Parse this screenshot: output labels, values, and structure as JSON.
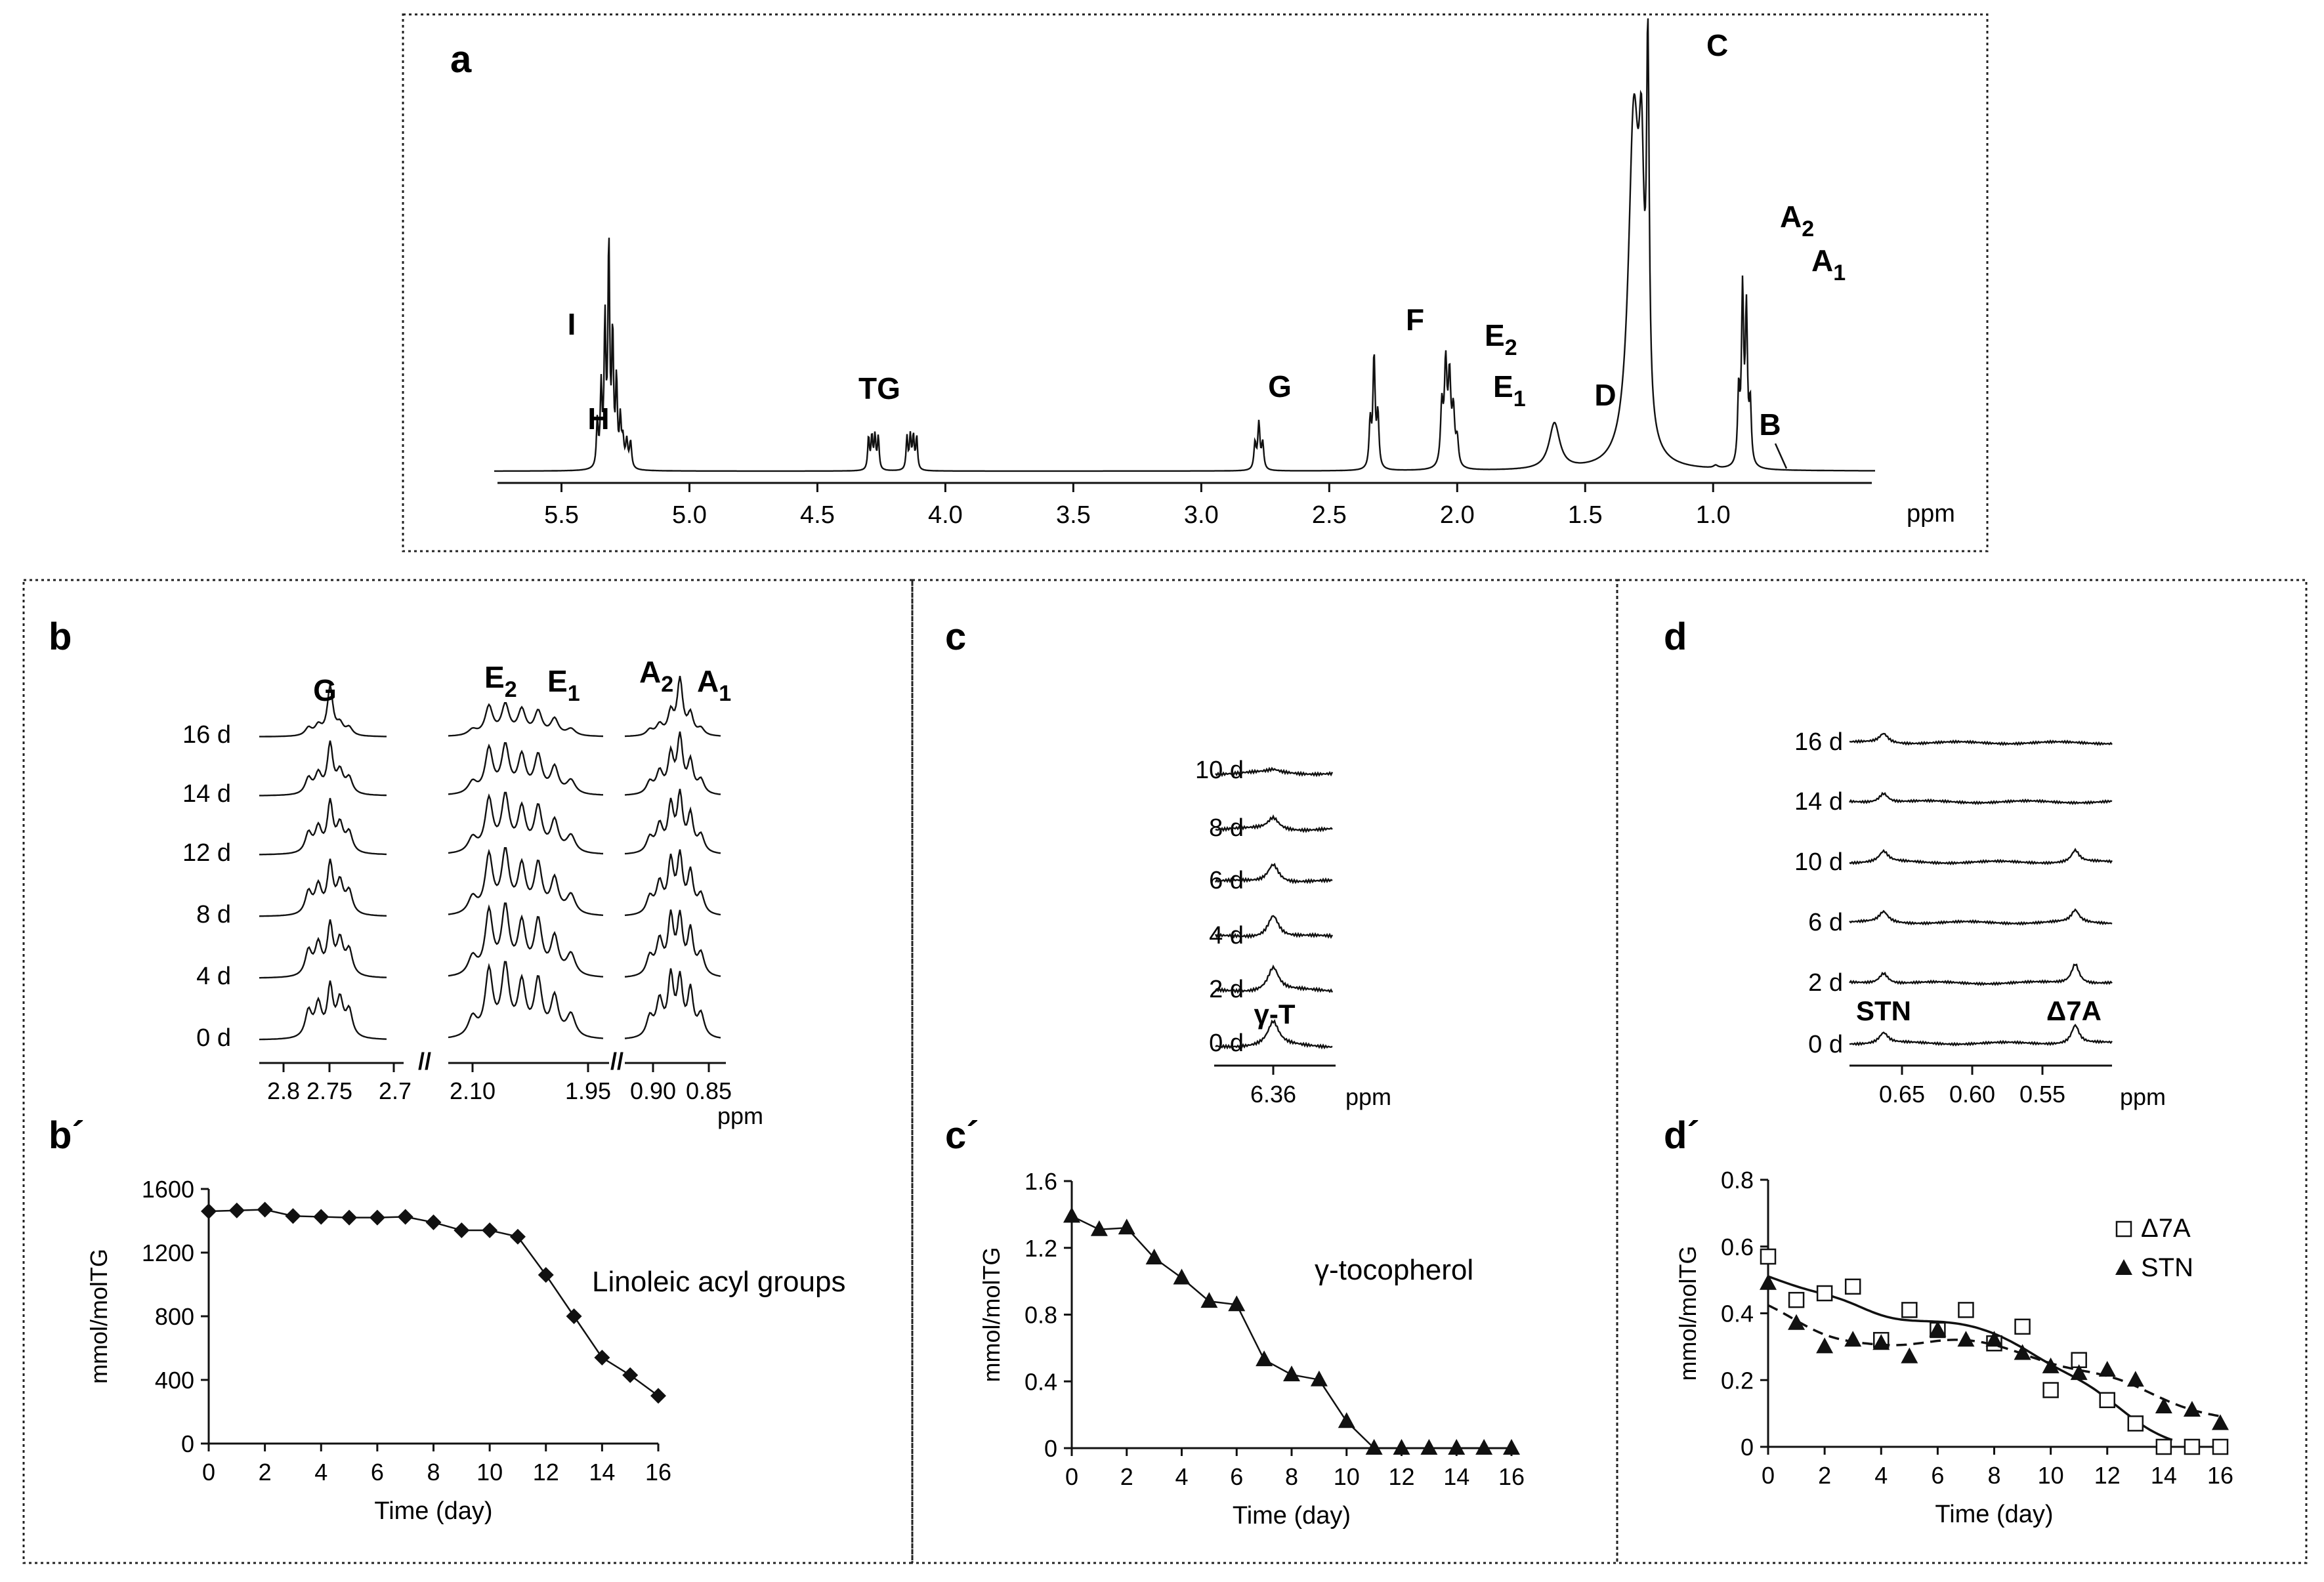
{
  "ppm_label": "ppm",
  "panel_a": {
    "label": "a",
    "x_ticks": [
      5.5,
      5.0,
      4.5,
      4.0,
      3.5,
      3.0,
      2.5,
      2.0,
      1.5,
      1.0
    ],
    "peak_labels": [
      {
        "id": "I",
        "text": "I"
      },
      {
        "id": "H",
        "text": "H"
      },
      {
        "id": "TG",
        "text": "TG"
      },
      {
        "id": "G",
        "text": "G"
      },
      {
        "id": "F",
        "text": "F"
      },
      {
        "id": "E2",
        "text": "E",
        "sub": "2"
      },
      {
        "id": "E1",
        "text": "E",
        "sub": "1"
      },
      {
        "id": "D",
        "text": "D"
      },
      {
        "id": "C",
        "text": "C"
      },
      {
        "id": "B",
        "text": "B"
      },
      {
        "id": "A2",
        "text": "A",
        "sub": "2"
      },
      {
        "id": "A1",
        "text": "A",
        "sub": "1"
      }
    ]
  },
  "panel_b": {
    "label": "b",
    "rows": [
      "16 d",
      "14 d",
      "12 d",
      "8 d",
      "4 d",
      "0 d"
    ],
    "group_labels": [
      {
        "text": "G"
      },
      {
        "text": "E",
        "sub": "2"
      },
      {
        "text": "E",
        "sub": "1"
      },
      {
        "text": "A",
        "sub": "2"
      },
      {
        "text": "A",
        "sub": "1"
      }
    ],
    "axis_ticks": [
      "2.8",
      "2.75",
      "2.7",
      "2.10",
      "1.95",
      "0.90",
      "0.85"
    ],
    "break_mark": "//"
  },
  "panel_c": {
    "label": "c",
    "rows": [
      "10 d",
      "8 d",
      "6 d",
      "4 d",
      "2 d",
      "0 d"
    ],
    "peak_label": "γ-T",
    "axis_ticks": [
      "6.36"
    ]
  },
  "panel_d": {
    "label": "d",
    "rows": [
      "16 d",
      "14 d",
      "10 d",
      "6 d",
      "2 d",
      "0 d"
    ],
    "peak_labels": [
      "STN",
      "Δ7A"
    ],
    "axis_ticks": [
      "0.65",
      "0.60",
      "0.55"
    ]
  },
  "chart_data": [
    {
      "panel": "b´",
      "type": "line",
      "title": "Linoleic acyl groups",
      "xlabel": "Time (day)",
      "ylabel": "mmol/molTG",
      "xlim": [
        0,
        16
      ],
      "ylim": [
        0,
        1600
      ],
      "x_ticks": [
        0,
        2,
        4,
        6,
        8,
        10,
        12,
        14,
        16
      ],
      "y_ticks": [
        0,
        400,
        800,
        1200,
        1600
      ],
      "series": [
        {
          "name": "Linoleic acyl groups",
          "marker": "diamond",
          "x": [
            0,
            1,
            2,
            3,
            4,
            5,
            6,
            7,
            8,
            9,
            10,
            11,
            12,
            13,
            14,
            15,
            16
          ],
          "values": [
            1460,
            1465,
            1470,
            1430,
            1425,
            1420,
            1420,
            1425,
            1390,
            1340,
            1340,
            1300,
            1060,
            800,
            540,
            430,
            300
          ]
        }
      ]
    },
    {
      "panel": "c´",
      "type": "line",
      "title": "γ-tocopherol",
      "xlabel": "Time (day)",
      "ylabel": "mmol/molTG",
      "xlim": [
        0,
        16
      ],
      "ylim": [
        0,
        1.6
      ],
      "x_ticks": [
        0,
        2,
        4,
        6,
        8,
        10,
        12,
        14,
        16
      ],
      "y_ticks": [
        0,
        0.4,
        0.8,
        1.2,
        1.6
      ],
      "series": [
        {
          "name": "γ-tocopherol",
          "marker": "triangle",
          "x": [
            0,
            1,
            2,
            3,
            4,
            5,
            6,
            7,
            8,
            9,
            10,
            11,
            12,
            13,
            14,
            15,
            16
          ],
          "values": [
            1.39,
            1.31,
            1.32,
            1.14,
            1.02,
            0.88,
            0.86,
            0.53,
            0.44,
            0.41,
            0.16,
            0,
            0,
            0,
            0,
            0,
            0
          ]
        }
      ]
    },
    {
      "panel": "d´",
      "type": "scatter",
      "xlabel": "Time (day)",
      "ylabel": "mmol/molTG",
      "xlim": [
        0,
        16
      ],
      "ylim": [
        0,
        0.8
      ],
      "x_ticks": [
        0,
        2,
        4,
        6,
        8,
        10,
        12,
        14,
        16
      ],
      "y_ticks": [
        0,
        0.2,
        0.4,
        0.6,
        0.8
      ],
      "legend_position": "top-right",
      "series": [
        {
          "name": "Δ7A",
          "marker": "open-square",
          "fit": "solid",
          "x": [
            0,
            1,
            2,
            3,
            4,
            5,
            6,
            7,
            8,
            9,
            10,
            11,
            12,
            13,
            14,
            15,
            16
          ],
          "values": [
            0.57,
            0.44,
            0.46,
            0.48,
            0.32,
            0.41,
            0.35,
            0.41,
            0.31,
            0.36,
            0.17,
            0.26,
            0.14,
            0.07,
            0,
            0,
            0
          ]
        },
        {
          "name": "STN",
          "marker": "filled-triangle",
          "fit": "dashed",
          "x": [
            0,
            1,
            2,
            3,
            4,
            5,
            6,
            7,
            8,
            9,
            10,
            11,
            12,
            13,
            14,
            15,
            16
          ],
          "values": [
            0.49,
            0.37,
            0.3,
            0.32,
            0.31,
            0.27,
            0.35,
            0.32,
            0.32,
            0.28,
            0.24,
            0.22,
            0.23,
            0.2,
            0.12,
            0.11,
            0.07
          ]
        }
      ]
    }
  ]
}
